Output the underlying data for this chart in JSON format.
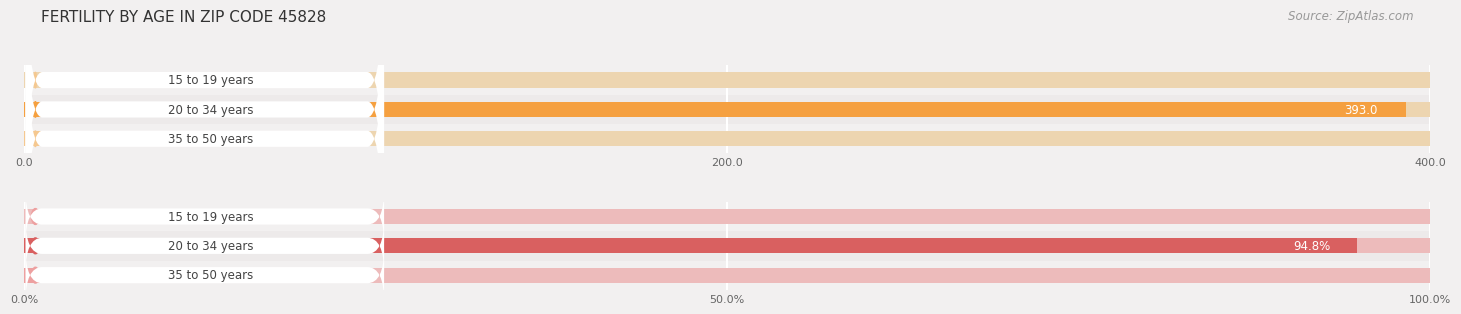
{
  "title": "FERTILITY BY AGE IN ZIP CODE 45828",
  "source": "Source: ZipAtlas.com",
  "top_chart": {
    "categories": [
      "15 to 19 years",
      "20 to 34 years",
      "35 to 50 years"
    ],
    "values": [
      0.0,
      393.0,
      16.0
    ],
    "max_value": 400.0,
    "x_ticks": [
      0.0,
      200.0,
      400.0
    ],
    "x_tick_labels": [
      "0.0",
      "200.0",
      "400.0"
    ],
    "bar_color_full": "#F5A040",
    "bar_color_light": "#F5C890",
    "track_color": "#EDD5B0",
    "label_box_color": "#FFFFFF",
    "row_bg_odd": "#F2F0F0",
    "row_bg_even": "#EDEAEA"
  },
  "bottom_chart": {
    "categories": [
      "15 to 19 years",
      "20 to 34 years",
      "35 to 50 years"
    ],
    "values": [
      0.0,
      94.8,
      5.2
    ],
    "max_value": 100.0,
    "x_ticks": [
      0.0,
      50.0,
      100.0
    ],
    "x_tick_labels": [
      "0.0%",
      "50.0%",
      "100.0%"
    ],
    "bar_color_full": "#D96060",
    "bar_color_light": "#EDA0A0",
    "track_color": "#EDBBBB",
    "label_box_color": "#FFFFFF",
    "row_bg_odd": "#F2F0F0",
    "row_bg_even": "#EDEAEA"
  },
  "fig_bg": "#F2F0F0",
  "title_fontsize": 11,
  "source_fontsize": 8.5
}
